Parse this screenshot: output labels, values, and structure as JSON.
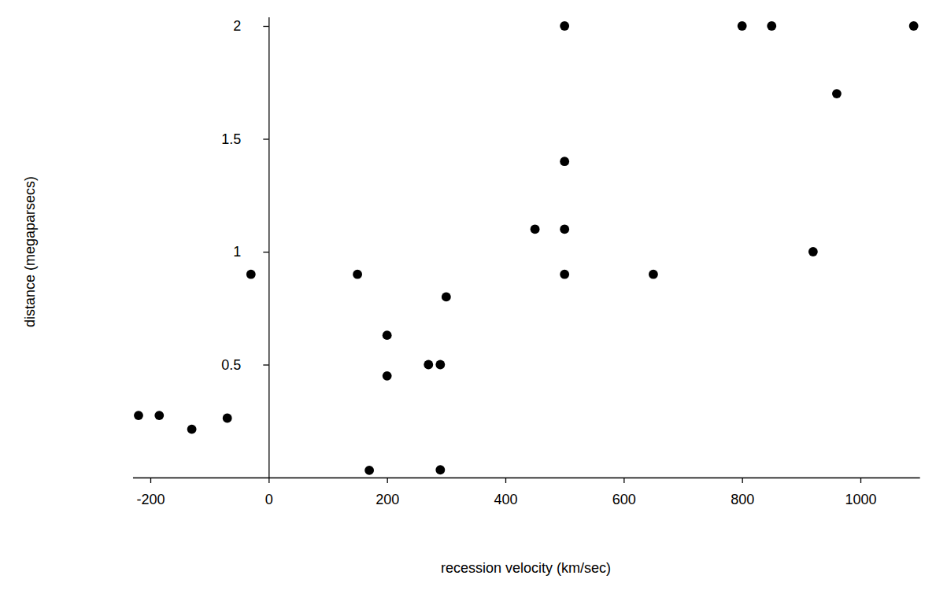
{
  "chart_data": {
    "type": "scatter",
    "x_label": "recession velocity (km/sec)",
    "y_label": "distance (megaparsecs)",
    "x": [
      170,
      290,
      -130,
      -70,
      -185,
      -220,
      200,
      290,
      270,
      200,
      300,
      -30,
      650,
      150,
      500,
      920,
      450,
      500,
      500,
      960,
      500,
      850,
      800,
      1090
    ],
    "values": [
      0.032,
      0.034,
      0.214,
      0.263,
      0.275,
      0.275,
      0.45,
      0.5,
      0.5,
      0.63,
      0.8,
      0.9,
      0.9,
      0.9,
      0.9,
      1.0,
      1.1,
      1.1,
      1.4,
      1.7,
      2.0,
      2.0,
      2.0,
      2.0
    ],
    "color": "#000000",
    "marker": "circle",
    "xlim": [
      -230,
      1100
    ],
    "xticks": [
      -200,
      0,
      200,
      400,
      600,
      800,
      1000
    ],
    "ylim": [
      0,
      2.04
    ],
    "yticks": [
      0.5,
      1,
      1.5,
      2
    ],
    "grid": false
  }
}
